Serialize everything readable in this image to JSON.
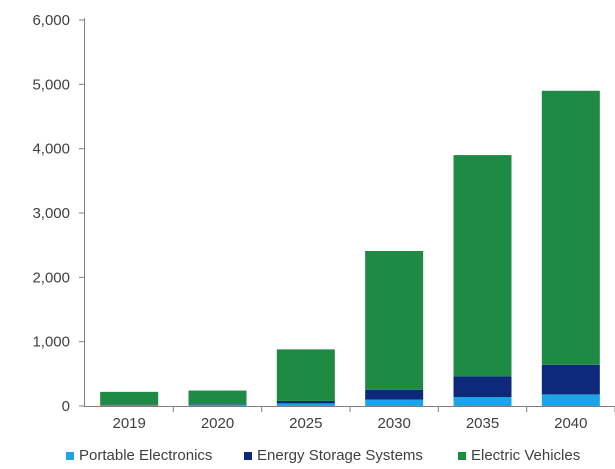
{
  "chart_data": {
    "type": "bar",
    "stacked": true,
    "categories": [
      "2019",
      "2020",
      "2025",
      "2030",
      "2035",
      "2040"
    ],
    "series": [
      {
        "name": "Portable Electronics",
        "color": "#1ea3e6",
        "values": [
          15,
          18,
          40,
          100,
          140,
          180
        ]
      },
      {
        "name": "Energy Storage Systems",
        "color": "#0d2a7a",
        "values": [
          5,
          7,
          40,
          150,
          320,
          460
        ]
      },
      {
        "name": "Electric Vehicles",
        "color": "#1e8a44",
        "values": [
          200,
          215,
          800,
          2160,
          3440,
          4260
        ]
      }
    ],
    "yticks": [
      "0",
      "1,000",
      "2,000",
      "3,000",
      "4,000",
      "5,000",
      "6,000"
    ],
    "ylim": [
      0,
      6000
    ],
    "grid": false,
    "legend_position": "bottom"
  }
}
